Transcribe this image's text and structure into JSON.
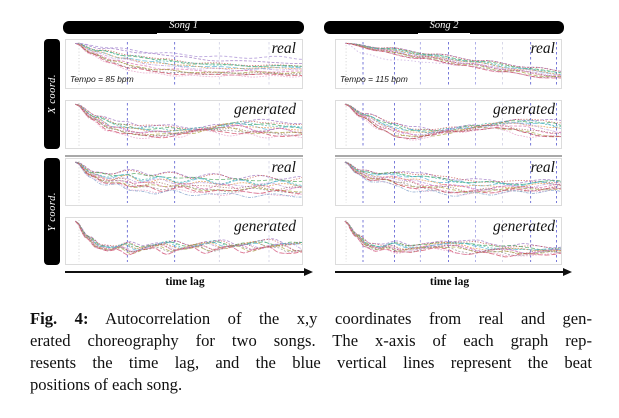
{
  "figure": {
    "row_groups": [
      {
        "label": "X coord."
      },
      {
        "label": "Y coord."
      }
    ],
    "axis": {
      "label": "time lag"
    }
  },
  "caption": {
    "tag": "Fig. 4:",
    "line1": "Autocorrelation of the x,y coordinates from real and gen-",
    "line2": "erated choreography for two songs. The x-axis of each graph rep-",
    "line3": "resents the time lag, and the blue vertical lines represent the beat",
    "line4": "positions of each song."
  },
  "chart_data": {
    "type": "line",
    "x_axis_label": "time lag",
    "y_axis": "autocorrelation (unlabeled, 1.0 at zero lag decaying rightward)",
    "note": "Eight qualitative multi-curve autocorrelation panels (2 songs x {X,Y} coords x {real, generated}); blue dashed vertical lines mark beat positions; y values below are normalized panel fractions (0=top).",
    "palette": [
      "#9368bd",
      "#c2453e",
      "#3f9e4d",
      "#38b2a3",
      "#46aed2",
      "#e08a3c",
      "#b28ad2",
      "#d85fa4",
      "#9d5f50",
      "#a3a238",
      "#888888",
      "#c9314b",
      "#e39ac4",
      "#6f94c4"
    ],
    "dash_patterns": [
      "3 1.6",
      "1.3 1.5",
      "4 2",
      "2 1.6",
      "5 2",
      "1.8 1.2",
      "3 1.2 1 1.2"
    ],
    "beat_styles": {
      "strong": {
        "color": "#5558cf",
        "opacity": 0.8,
        "dash": "2.5 2.5"
      },
      "medium": {
        "color": "#7a7ad8",
        "opacity": 0.6,
        "dash": "2.5 2.5"
      },
      "faint": {
        "color": "#a8a8cc",
        "opacity": 0.45,
        "dash": "2.5 2.5"
      },
      "gray": {
        "color": "#bdbdbd",
        "opacity": 0.7,
        "dash": "1 2.2"
      }
    },
    "songs": [
      {
        "title": "Song 1",
        "tempo_label": "Tempo = 85 bpm",
        "tempo_bpm": 85,
        "beats": [
          {
            "pos": 0.055,
            "style": "gray"
          },
          {
            "pos": 0.26,
            "style": "strong"
          },
          {
            "pos": 0.46,
            "style": "strong"
          },
          {
            "pos": 0.65,
            "style": "faint"
          },
          {
            "pos": 0.86,
            "style": "faint"
          }
        ]
      },
      {
        "title": "Song 2",
        "tempo_label": "Tempo = 115 bpm",
        "tempo_bpm": 115,
        "beats": [
          {
            "pos": 0.045,
            "style": "gray"
          },
          {
            "pos": 0.12,
            "style": "strong"
          },
          {
            "pos": 0.26,
            "style": "strong"
          },
          {
            "pos": 0.375,
            "style": "medium"
          },
          {
            "pos": 0.5,
            "style": "strong"
          },
          {
            "pos": 0.62,
            "style": "medium"
          },
          {
            "pos": 0.74,
            "style": "faint"
          },
          {
            "pos": 0.865,
            "style": "strong"
          },
          {
            "pos": 0.98,
            "style": "strong"
          }
        ]
      }
    ],
    "panels": [
      {
        "song": 0,
        "coord": "X",
        "label": "real",
        "n_curves": 13,
        "seed": 11,
        "spread": 0.13,
        "warp": 0.3,
        "wiggle": 0.015,
        "base": [
          [
            0.04,
            0.07
          ],
          [
            0.12,
            0.26
          ],
          [
            0.22,
            0.4
          ],
          [
            0.33,
            0.5
          ],
          [
            0.45,
            0.57
          ],
          [
            0.58,
            0.61
          ],
          [
            0.72,
            0.63
          ],
          [
            0.86,
            0.62
          ],
          [
            1,
            0.63
          ]
        ],
        "outlier": {
          "base": [
            [
              0.04,
              0.07
            ],
            [
              0.2,
              0.17
            ],
            [
              0.4,
              0.27
            ],
            [
              0.6,
              0.34
            ],
            [
              0.78,
              0.37
            ],
            [
              0.9,
              0.35
            ],
            [
              1,
              0.39
            ]
          ],
          "color": "#a98fd4",
          "dash": "3 2"
        }
      },
      {
        "song": 0,
        "coord": "X",
        "label": "generated",
        "n_curves": 13,
        "seed": 22,
        "spread": 0.11,
        "warp": 0.18,
        "wiggle": 0.028,
        "base": [
          [
            0.04,
            0.07
          ],
          [
            0.12,
            0.36
          ],
          [
            0.2,
            0.56
          ],
          [
            0.28,
            0.63
          ],
          [
            0.36,
            0.65
          ],
          [
            0.46,
            0.67
          ],
          [
            0.56,
            0.63
          ],
          [
            0.66,
            0.53
          ],
          [
            0.74,
            0.54
          ],
          [
            0.84,
            0.62
          ],
          [
            0.92,
            0.6
          ],
          [
            1,
            0.64
          ]
        ]
      },
      {
        "song": 0,
        "coord": "Y",
        "label": "real",
        "n_curves": 14,
        "seed": 33,
        "spread": 0.19,
        "warp": 0.2,
        "wiggle": 0.035,
        "base": [
          [
            0.04,
            0.07
          ],
          [
            0.11,
            0.34
          ],
          [
            0.18,
            0.46
          ],
          [
            0.25,
            0.42
          ],
          [
            0.31,
            0.52
          ],
          [
            0.38,
            0.49
          ],
          [
            0.45,
            0.56
          ],
          [
            0.53,
            0.53
          ],
          [
            0.61,
            0.59
          ],
          [
            0.69,
            0.56
          ],
          [
            0.77,
            0.61
          ],
          [
            0.85,
            0.58
          ],
          [
            0.93,
            0.62
          ],
          [
            1,
            0.61
          ]
        ]
      },
      {
        "song": 0,
        "coord": "Y",
        "label": "generated",
        "n_curves": 13,
        "seed": 44,
        "spread": 0.085,
        "warp": 0.12,
        "wiggle": 0.022,
        "base": [
          [
            0.04,
            0.07
          ],
          [
            0.09,
            0.42
          ],
          [
            0.14,
            0.63
          ],
          [
            0.19,
            0.68
          ],
          [
            0.24,
            0.61
          ],
          [
            0.29,
            0.71
          ],
          [
            0.35,
            0.63
          ],
          [
            0.41,
            0.57
          ],
          [
            0.47,
            0.69
          ],
          [
            0.53,
            0.62
          ],
          [
            0.59,
            0.56
          ],
          [
            0.65,
            0.67
          ],
          [
            0.71,
            0.6
          ],
          [
            0.77,
            0.56
          ],
          [
            0.83,
            0.66
          ],
          [
            0.89,
            0.59
          ],
          [
            0.95,
            0.57
          ],
          [
            1,
            0.67
          ]
        ]
      },
      {
        "song": 1,
        "coord": "X",
        "label": "real",
        "n_curves": 13,
        "seed": 55,
        "spread": 0.05,
        "warp": 0.1,
        "wiggle": 0.008,
        "base": [
          [
            0.04,
            0.07
          ],
          [
            0.2,
            0.2
          ],
          [
            0.4,
            0.34
          ],
          [
            0.6,
            0.48
          ],
          [
            0.8,
            0.62
          ],
          [
            1,
            0.74
          ]
        ],
        "outlier": {
          "base": [
            [
              0.04,
              0.07
            ],
            [
              0.12,
              0.28
            ],
            [
              0.25,
              0.42
            ],
            [
              0.4,
              0.46
            ],
            [
              0.55,
              0.5
            ],
            [
              0.75,
              0.58
            ],
            [
              1,
              0.72
            ]
          ],
          "color": "#c7aede",
          "dash": "1.5 2"
        }
      },
      {
        "song": 1,
        "coord": "X",
        "label": "generated",
        "n_curves": 13,
        "seed": 66,
        "spread": 0.105,
        "warp": 0.16,
        "wiggle": 0.026,
        "base": [
          [
            0.04,
            0.07
          ],
          [
            0.12,
            0.32
          ],
          [
            0.22,
            0.55
          ],
          [
            0.3,
            0.67
          ],
          [
            0.38,
            0.71
          ],
          [
            0.46,
            0.67
          ],
          [
            0.54,
            0.61
          ],
          [
            0.62,
            0.56
          ],
          [
            0.7,
            0.51
          ],
          [
            0.78,
            0.49
          ],
          [
            0.86,
            0.54
          ],
          [
            0.93,
            0.61
          ],
          [
            1,
            0.66
          ]
        ]
      },
      {
        "song": 1,
        "coord": "Y",
        "label": "real",
        "n_curves": 14,
        "seed": 77,
        "spread": 0.15,
        "warp": 0.2,
        "wiggle": 0.033,
        "base": [
          [
            0.04,
            0.07
          ],
          [
            0.1,
            0.29
          ],
          [
            0.17,
            0.41
          ],
          [
            0.24,
            0.39
          ],
          [
            0.32,
            0.47
          ],
          [
            0.4,
            0.54
          ],
          [
            0.48,
            0.57
          ],
          [
            0.56,
            0.61
          ],
          [
            0.64,
            0.64
          ],
          [
            0.72,
            0.62
          ],
          [
            0.8,
            0.61
          ],
          [
            0.88,
            0.59
          ],
          [
            1,
            0.57
          ]
        ]
      },
      {
        "song": 1,
        "coord": "Y",
        "label": "generated",
        "n_curves": 13,
        "seed": 88,
        "spread": 0.095,
        "warp": 0.14,
        "wiggle": 0.024,
        "base": [
          [
            0.04,
            0.07
          ],
          [
            0.09,
            0.38
          ],
          [
            0.14,
            0.6
          ],
          [
            0.19,
            0.66
          ],
          [
            0.24,
            0.6
          ],
          [
            0.3,
            0.68
          ],
          [
            0.36,
            0.66
          ],
          [
            0.42,
            0.6
          ],
          [
            0.48,
            0.58
          ],
          [
            0.54,
            0.6
          ],
          [
            0.6,
            0.66
          ],
          [
            0.66,
            0.7
          ],
          [
            0.72,
            0.68
          ],
          [
            0.78,
            0.7
          ],
          [
            0.85,
            0.74
          ],
          [
            0.92,
            0.72
          ],
          [
            1,
            0.7
          ]
        ]
      }
    ]
  }
}
